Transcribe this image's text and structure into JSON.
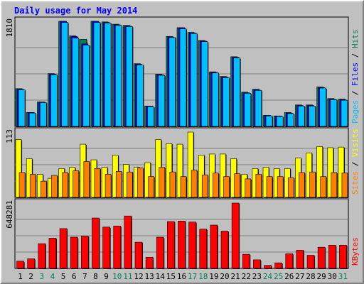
{
  "chart_data": {
    "type": "bar",
    "title": "Daily usage for May 2014",
    "categories": [
      "1",
      "2",
      "3",
      "4",
      "5",
      "6",
      "7",
      "8",
      "9",
      "10",
      "11",
      "12",
      "13",
      "14",
      "15",
      "16",
      "17",
      "18",
      "19",
      "20",
      "21",
      "22",
      "23",
      "24",
      "25",
      "26",
      "27",
      "28",
      "29",
      "30",
      "31"
    ],
    "weekend_days": [
      "3",
      "4",
      "10",
      "11",
      "17",
      "18",
      "24",
      "25",
      "31"
    ],
    "panels": [
      {
        "id": "hits",
        "max_label": "1810",
        "max": 1810,
        "right_labels": [
          {
            "text": "Pages",
            "color": "#00c0ff"
          },
          {
            "text": "Files",
            "color": "#0000ff"
          },
          {
            "text": "Hits",
            "color": "#00805c"
          }
        ],
        "series": [
          {
            "name": "Hits",
            "color": "#00805c",
            "values": [
              650,
              240,
              420,
              910,
              1810,
              1560,
              1500,
              1810,
              1800,
              1760,
              1740,
              1080,
              350,
              900,
              1550,
              1700,
              1620,
              1480,
              940,
              860,
              1200,
              590,
              640,
              190,
              180,
              240,
              370,
              370,
              680,
              480,
              470
            ]
          },
          {
            "name": "Files",
            "color": "#0000ff",
            "values": [
              640,
              240,
              420,
              900,
              1810,
              1550,
              1420,
              1810,
              1790,
              1750,
              1730,
              1070,
              350,
              890,
              1540,
              1700,
              1610,
              1470,
              930,
              850,
              1190,
              580,
              630,
              190,
              180,
              230,
              360,
              360,
              670,
              470,
              460
            ]
          },
          {
            "name": "Pages",
            "color": "#00c0ff",
            "values": [
              630,
              230,
              410,
              890,
              1790,
              1520,
              1400,
              1790,
              1780,
              1740,
              1720,
              1060,
              340,
              880,
              1530,
              1680,
              1600,
              1460,
              920,
              840,
              1180,
              570,
              620,
              180,
              170,
              220,
              350,
              350,
              660,
              460,
              450
            ]
          }
        ]
      },
      {
        "id": "visits",
        "max_label": "113",
        "max": 113,
        "right_labels": [
          {
            "text": "Sites",
            "color": "#ff8000"
          },
          {
            "text": "Visits",
            "color": "#ffff00"
          }
        ],
        "series": [
          {
            "name": "Visits",
            "color": "#ffff00",
            "values": [
              100,
              67,
              40,
              33,
              50,
              52,
              92,
              65,
              52,
              73,
              57,
              52,
              60,
              100,
              93,
              92,
              113,
              73,
              75,
              75,
              67,
              40,
              50,
              52,
              50,
              50,
              68,
              77,
              88,
              86,
              87
            ]
          },
          {
            "name": "Sites",
            "color": "#ff8000",
            "values": [
              43,
              40,
              28,
              38,
              43,
              46,
              62,
              50,
              40,
              45,
              44,
              51,
              36,
              52,
              44,
              36,
              47,
              39,
              42,
              36,
              41,
              32,
              40,
              36,
              36,
              34,
              43,
              44,
              36,
              43,
              42
            ]
          }
        ]
      },
      {
        "id": "kbytes",
        "max_label": "648281",
        "max": 648281,
        "right_labels": [
          {
            "text": "KBytes",
            "color": "#ff0000"
          }
        ],
        "series": [
          {
            "name": "KBytes",
            "color": "#ff0000",
            "values": [
              72000,
              95000,
              245000,
              300000,
              395000,
              310000,
              320000,
              500000,
              410000,
              420000,
              520000,
              260000,
              110000,
              310000,
              465000,
              470000,
              460000,
              390000,
              430000,
              370000,
              648281,
              140000,
              85000,
              30000,
              55000,
              145000,
              180000,
              130000,
              210000,
              230000,
              230000
            ]
          }
        ]
      }
    ]
  }
}
